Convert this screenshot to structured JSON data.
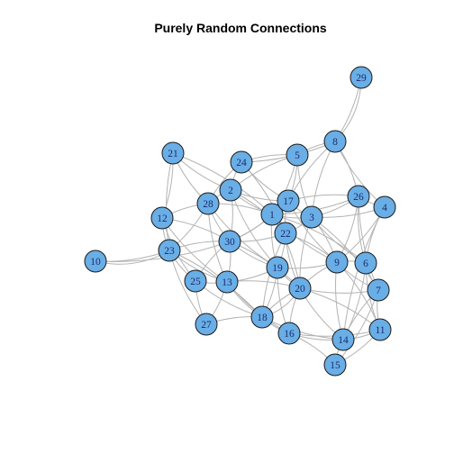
{
  "title": "Purely Random Connections",
  "colors": {
    "node_fill": "#6aaee6",
    "node_stroke": "#1a1a1a",
    "edge": "#b3b3b3",
    "label": "#1a2a6e"
  },
  "nodes": [
    "1",
    "2",
    "3",
    "4",
    "5",
    "6",
    "7",
    "8",
    "9",
    "10",
    "11",
    "12",
    "13",
    "14",
    "15",
    "16",
    "17",
    "18",
    "19",
    "20",
    "21",
    "22",
    "23",
    "24",
    "25",
    "26",
    "27",
    "28",
    "29",
    "30"
  ],
  "edges": [
    [
      "29",
      "8"
    ],
    [
      "29",
      "8"
    ],
    [
      "8",
      "5"
    ],
    [
      "8",
      "26"
    ],
    [
      "8",
      "17"
    ],
    [
      "8",
      "3"
    ],
    [
      "8",
      "24"
    ],
    [
      "8",
      "4"
    ],
    [
      "5",
      "24"
    ],
    [
      "5",
      "17"
    ],
    [
      "5",
      "2"
    ],
    [
      "5",
      "3"
    ],
    [
      "5",
      "1"
    ],
    [
      "24",
      "2"
    ],
    [
      "24",
      "17"
    ],
    [
      "24",
      "22"
    ],
    [
      "24",
      "28"
    ],
    [
      "21",
      "2"
    ],
    [
      "21",
      "12"
    ],
    [
      "21",
      "28"
    ],
    [
      "21",
      "23"
    ],
    [
      "21",
      "1"
    ],
    [
      "2",
      "28"
    ],
    [
      "2",
      "1"
    ],
    [
      "2",
      "30"
    ],
    [
      "2",
      "17"
    ],
    [
      "2",
      "19"
    ],
    [
      "2",
      "22"
    ],
    [
      "28",
      "12"
    ],
    [
      "28",
      "30"
    ],
    [
      "28",
      "23"
    ],
    [
      "28",
      "13"
    ],
    [
      "28",
      "19"
    ],
    [
      "28",
      "1"
    ],
    [
      "12",
      "23"
    ],
    [
      "12",
      "25"
    ],
    [
      "12",
      "30"
    ],
    [
      "12",
      "13"
    ],
    [
      "10",
      "23"
    ],
    [
      "10",
      "23"
    ],
    [
      "10",
      "30"
    ],
    [
      "23",
      "25"
    ],
    [
      "23",
      "30"
    ],
    [
      "23",
      "13"
    ],
    [
      "23",
      "27"
    ],
    [
      "23",
      "18"
    ],
    [
      "25",
      "13"
    ],
    [
      "25",
      "27"
    ],
    [
      "25",
      "30"
    ],
    [
      "25",
      "18"
    ],
    [
      "27",
      "13"
    ],
    [
      "27",
      "18"
    ],
    [
      "30",
      "1"
    ],
    [
      "30",
      "22"
    ],
    [
      "30",
      "13"
    ],
    [
      "30",
      "19"
    ],
    [
      "30",
      "17"
    ],
    [
      "30",
      "20"
    ],
    [
      "13",
      "19"
    ],
    [
      "13",
      "18"
    ],
    [
      "13",
      "20"
    ],
    [
      "13",
      "16"
    ],
    [
      "1",
      "17"
    ],
    [
      "1",
      "22"
    ],
    [
      "1",
      "3"
    ],
    [
      "1",
      "19"
    ],
    [
      "1",
      "20"
    ],
    [
      "1",
      "9"
    ],
    [
      "1",
      "26"
    ],
    [
      "1",
      "6"
    ],
    [
      "17",
      "22"
    ],
    [
      "17",
      "3"
    ],
    [
      "17",
      "26"
    ],
    [
      "17",
      "9"
    ],
    [
      "22",
      "3"
    ],
    [
      "22",
      "19"
    ],
    [
      "22",
      "20"
    ],
    [
      "22",
      "18"
    ],
    [
      "22",
      "9"
    ],
    [
      "3",
      "26"
    ],
    [
      "3",
      "4"
    ],
    [
      "3",
      "9"
    ],
    [
      "3",
      "6"
    ],
    [
      "3",
      "20"
    ],
    [
      "3",
      "7"
    ],
    [
      "26",
      "4"
    ],
    [
      "26",
      "6"
    ],
    [
      "26",
      "9"
    ],
    [
      "26",
      "7"
    ],
    [
      "4",
      "6"
    ],
    [
      "4",
      "9"
    ],
    [
      "4",
      "14"
    ],
    [
      "19",
      "20"
    ],
    [
      "19",
      "18"
    ],
    [
      "19",
      "16"
    ],
    [
      "19",
      "9"
    ],
    [
      "20",
      "9"
    ],
    [
      "20",
      "16"
    ],
    [
      "20",
      "14"
    ],
    [
      "20",
      "11"
    ],
    [
      "20",
      "18"
    ],
    [
      "20",
      "7"
    ],
    [
      "9",
      "6"
    ],
    [
      "9",
      "7"
    ],
    [
      "9",
      "14"
    ],
    [
      "9",
      "11"
    ],
    [
      "6",
      "7"
    ],
    [
      "6",
      "11"
    ],
    [
      "6",
      "14"
    ],
    [
      "7",
      "11"
    ],
    [
      "7",
      "14"
    ],
    [
      "7",
      "15"
    ],
    [
      "18",
      "16"
    ],
    [
      "18",
      "14"
    ],
    [
      "18",
      "20"
    ],
    [
      "16",
      "14"
    ],
    [
      "16",
      "11"
    ],
    [
      "16",
      "15"
    ],
    [
      "14",
      "11"
    ],
    [
      "14",
      "15"
    ],
    [
      "11",
      "15"
    ]
  ]
}
